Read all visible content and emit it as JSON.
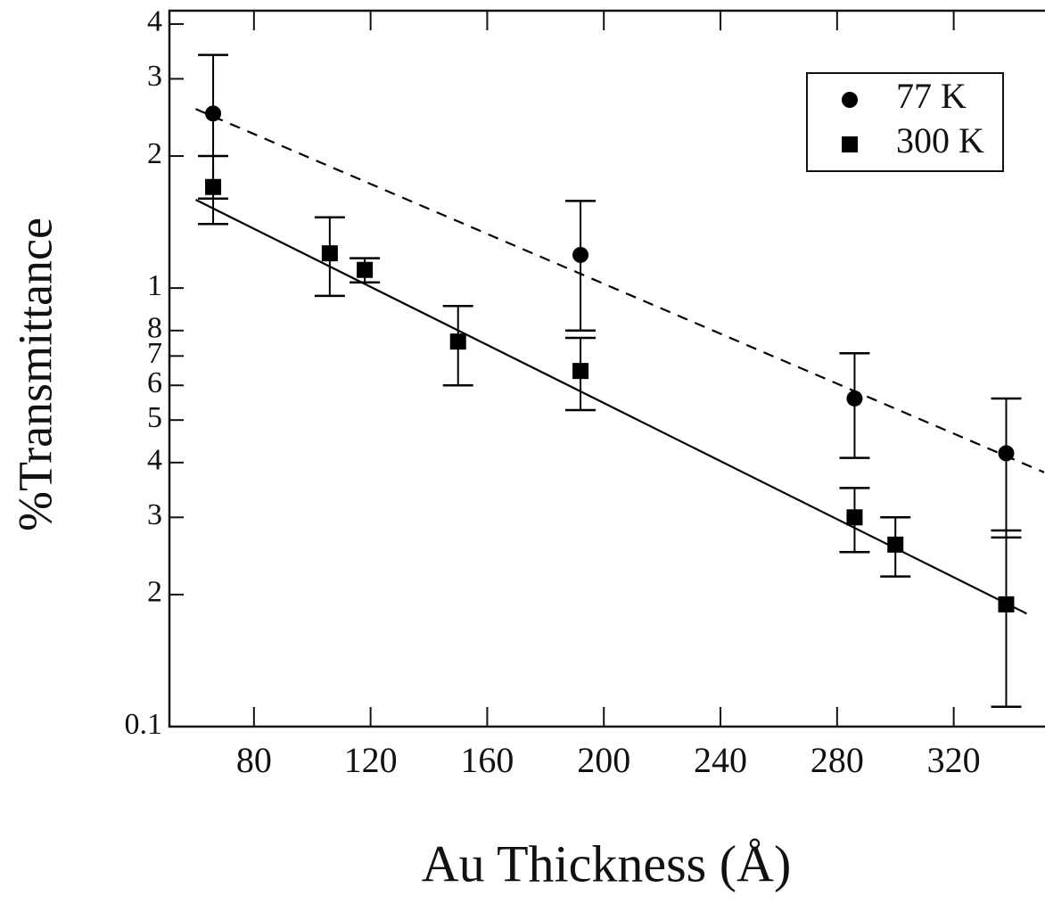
{
  "chart_data": {
    "type": "scatter",
    "x_label": "Au Thickness (Å)",
    "y_label": "%Transmittance",
    "log_y": true,
    "legend": "upper right",
    "xlim": [
      51,
      351
    ],
    "ylim": [
      0.1,
      4.29
    ],
    "xticks": [
      80,
      120,
      160,
      200,
      240,
      280,
      320
    ],
    "yticks": [
      0.1,
      {
        "value": 0.2,
        "label": "2"
      },
      {
        "value": 0.3,
        "label": "3"
      },
      {
        "value": 0.4,
        "label": "4"
      },
      {
        "value": 0.5,
        "label": "5"
      },
      {
        "value": 0.6,
        "label": "6"
      },
      {
        "value": 0.7,
        "label": "7"
      },
      {
        "value": 0.8,
        "label": "8"
      },
      1,
      2,
      3,
      4
    ],
    "series": [
      {
        "name": "77 K",
        "marker": "circle",
        "color": "#000000",
        "x": [
          66,
          192,
          286,
          338
        ],
        "values": [
          2.5,
          1.19,
          0.56,
          0.42
        ],
        "lower": [
          1.6,
          0.8,
          0.41,
          0.27
        ],
        "upper": [
          3.4,
          1.58,
          0.71,
          0.56
        ],
        "fit": {
          "x": [
            60,
            351
          ],
          "values": [
            2.56,
            0.38
          ],
          "dashed": true
        }
      },
      {
        "name": "300 K",
        "marker": "square",
        "color": "#000000",
        "x": [
          66,
          106,
          118,
          150,
          192,
          286,
          300,
          338
        ],
        "values": [
          1.7,
          1.2,
          1.1,
          0.755,
          0.647,
          0.3,
          0.26,
          0.19
        ],
        "lower": [
          1.4,
          0.96,
          1.03,
          0.6,
          0.527,
          0.25,
          0.22,
          0.111
        ],
        "upper": [
          2.0,
          1.45,
          1.17,
          0.91,
          0.77,
          0.35,
          0.3,
          0.28
        ],
        "fit": {
          "x": [
            60,
            345
          ],
          "values": [
            1.59,
            0.181
          ],
          "dashed": false
        }
      }
    ]
  }
}
